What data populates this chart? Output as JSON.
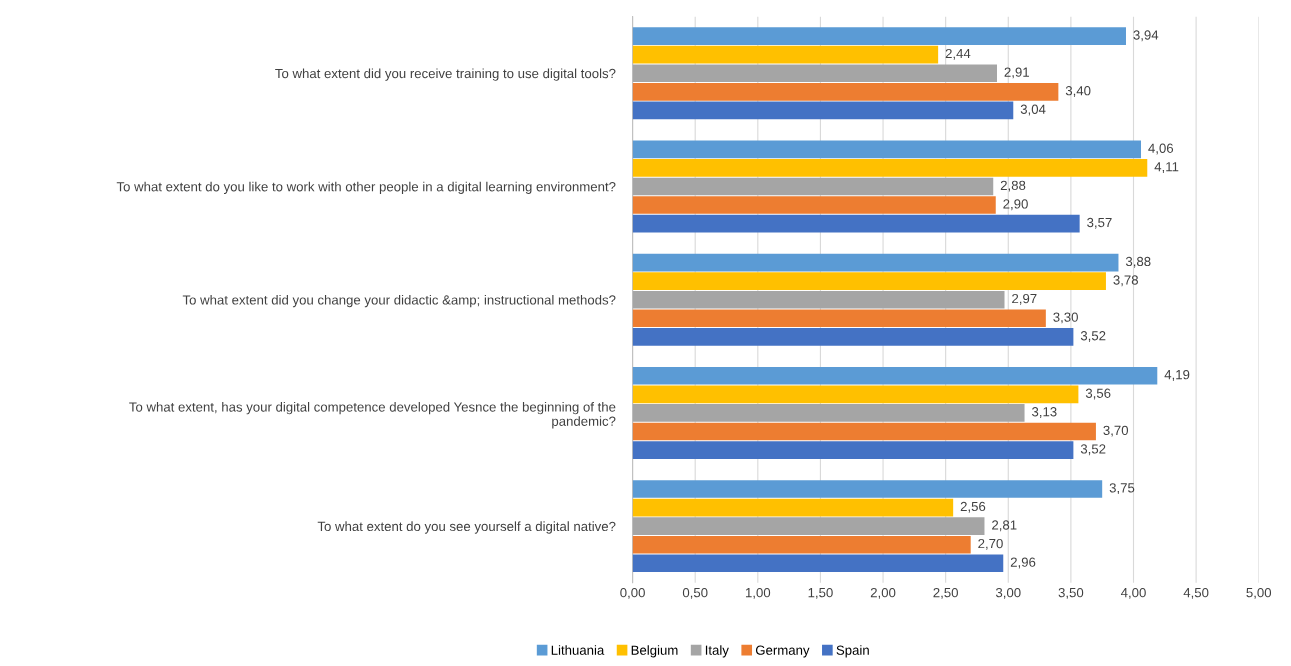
{
  "chart_data": {
    "type": "bar",
    "orientation": "horizontal",
    "categories": [
      "To what extent did you receive training to use digital tools?",
      "To what extent do you like to work with other people in a digital learning environment?",
      "To what extent did you change your didactic &amp; instructional methods?",
      "To what extent, has your digital competence developed Yesnce the beginning of the pandemic?",
      "To what extent do you see yourself a digital native?"
    ],
    "series": [
      {
        "name": "Lithuania",
        "color": "#5b9bd5",
        "values": [
          3.94,
          4.06,
          3.88,
          4.19,
          3.75
        ],
        "value_labels": [
          "3,94",
          "4,06",
          "3,88",
          "4,19",
          "3,75"
        ]
      },
      {
        "name": "Belgium",
        "color": "#ffc000",
        "values": [
          2.44,
          4.11,
          3.78,
          3.56,
          2.56
        ],
        "value_labels": [
          "2,44",
          "4,11",
          "3,78",
          "3,56",
          "2,56"
        ]
      },
      {
        "name": "Italy",
        "color": "#a5a5a5",
        "values": [
          2.91,
          2.88,
          2.97,
          3.13,
          2.81
        ],
        "value_labels": [
          "2,91",
          "2,88",
          "2,97",
          "3,13",
          "2,81"
        ]
      },
      {
        "name": "Germany",
        "color": "#ed7d31",
        "values": [
          3.4,
          2.9,
          3.3,
          3.7,
          2.7
        ],
        "value_labels": [
          "3,40",
          "2,90",
          "3,30",
          "3,70",
          "2,70"
        ]
      },
      {
        "name": "Spain",
        "color": "#4472c4",
        "values": [
          3.04,
          3.57,
          3.52,
          3.52,
          2.96
        ],
        "value_labels": [
          "3,04",
          "3,57",
          "3,52",
          "3,52",
          "2,96"
        ]
      }
    ],
    "xlim": [
      0,
      5
    ],
    "xticks": [
      {
        "value": 0,
        "label": "0,00"
      },
      {
        "value": 0.5,
        "label": "0,50"
      },
      {
        "value": 1,
        "label": "1,00"
      },
      {
        "value": 1.5,
        "label": "1,50"
      },
      {
        "value": 2,
        "label": "2,00"
      },
      {
        "value": 2.5,
        "label": "2,50"
      },
      {
        "value": 3,
        "label": "3,00"
      },
      {
        "value": 3.5,
        "label": "3,50"
      },
      {
        "value": 4,
        "label": "4,00"
      },
      {
        "value": 4.5,
        "label": "4,50"
      },
      {
        "value": 5,
        "label": "5,00"
      }
    ],
    "grid": "x",
    "legend": "bottom"
  }
}
